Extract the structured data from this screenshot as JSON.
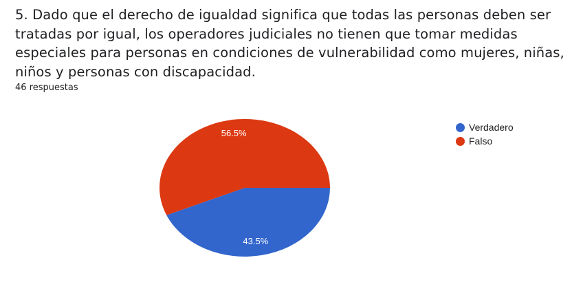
{
  "question": {
    "text": "5. Dado que el derecho de igualdad significa que todas las personas deben ser tratadas por igual, los operadores judiciales no tienen que tomar medidas especiales para personas en condiciones de vulnerabilidad como mujeres, niñas, niños y personas con discapacidad."
  },
  "responses_count": "46 respuestas",
  "legend": [
    {
      "label": "Verdadero",
      "color": "#3366cc"
    },
    {
      "label": "Falso",
      "color": "#dc3912"
    }
  ],
  "chart_data": {
    "type": "pie",
    "title": "",
    "slices": [
      {
        "label": "Verdadero",
        "value": 43.5,
        "display": "43.5%",
        "color": "#3366cc"
      },
      {
        "label": "Falso",
        "value": 56.5,
        "display": "56.5%",
        "color": "#dc3912"
      }
    ]
  }
}
